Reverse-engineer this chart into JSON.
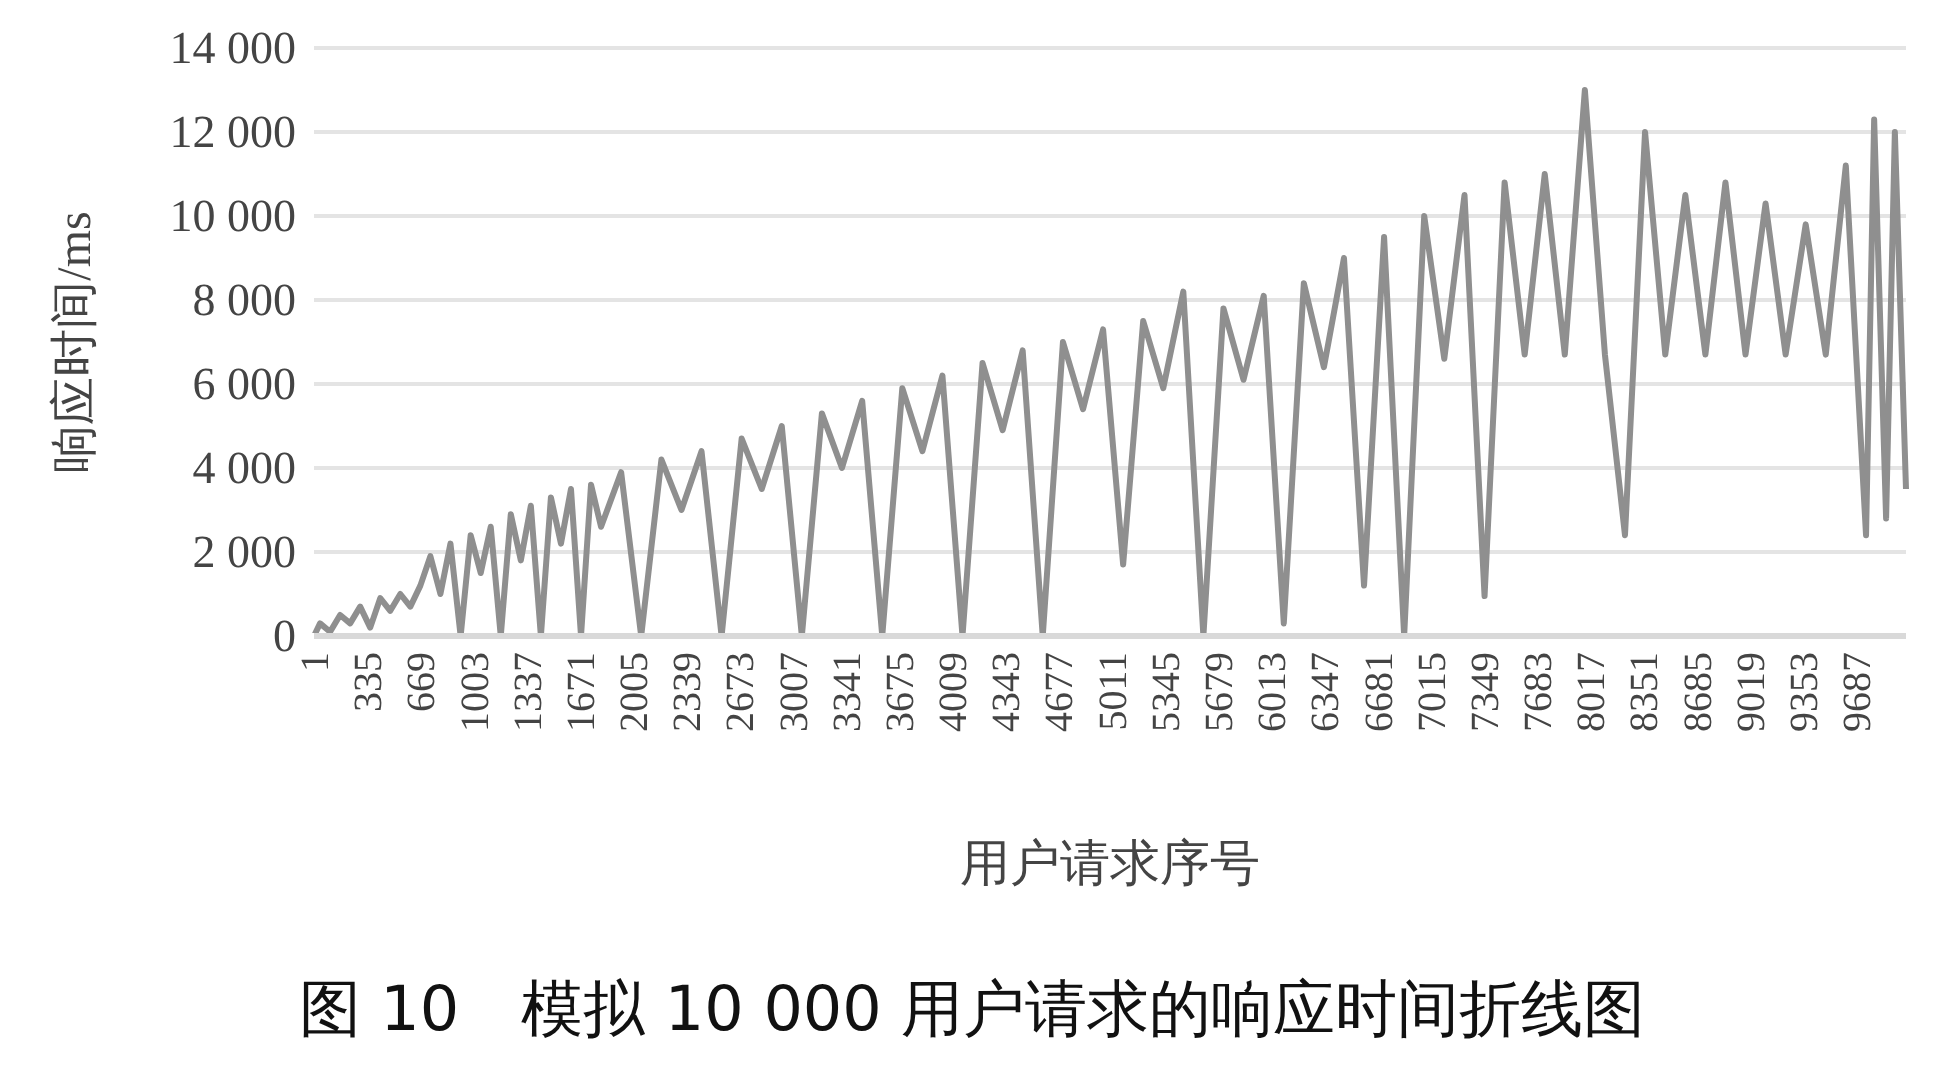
{
  "chart_data": {
    "type": "line",
    "title": "图 10　模拟 10 000 用户请求的响应时间折线图",
    "xlabel": "用户请求序号",
    "ylabel": "响应时间/ms",
    "xlim": [
      1,
      10000
    ],
    "xticks": [
      1,
      335,
      669,
      1003,
      1337,
      1671,
      2005,
      2339,
      2673,
      3007,
      3341,
      3675,
      4009,
      4343,
      4677,
      5011,
      5345,
      5679,
      6013,
      6347,
      6681,
      7015,
      7349,
      7683,
      8017,
      8351,
      8685,
      9019,
      9353,
      9687
    ],
    "ylim": [
      0,
      14000
    ],
    "yticks": [
      0,
      {
        "value": 2000,
        "label": "2 000"
      },
      {
        "value": 4000,
        "label": "4 000"
      },
      {
        "value": 6000,
        "label": "6 000"
      },
      {
        "value": 8000,
        "label": "8 000"
      },
      {
        "value": 10000,
        "label": "10 000"
      },
      {
        "value": 12000,
        "label": "12 000"
      },
      {
        "value": 14000,
        "label": "14 000"
      }
    ],
    "grid": "y",
    "legend": false,
    "marker": "none",
    "line_style": "solid",
    "series": [
      {
        "color": "#8f8f8f",
        "x": [
          1,
          39,
          102,
          165,
          228,
          291,
          354,
          417,
          480,
          543,
          606,
          669,
          732,
          795,
          858,
          922,
          985,
          1048,
          1111,
          1174,
          1237,
          1300,
          1363,
          1426,
          1489,
          1552,
          1615,
          1678,
          1741,
          1804,
          1930,
          2056,
          2183,
          2309,
          2435,
          2561,
          2687,
          2813,
          2939,
          3065,
          3191,
          3317,
          3444,
          3570,
          3696,
          3822,
          3948,
          4074,
          4200,
          4326,
          4452,
          4578,
          4705,
          4831,
          4957,
          5083,
          5209,
          5335,
          5461,
          5587,
          5713,
          5839,
          5966,
          6092,
          6218,
          6344,
          6470,
          6596,
          6722,
          6848,
          6974,
          7100,
          7227,
          7353,
          7479,
          7605,
          7731,
          7857,
          7983,
          8109,
          8235,
          8361,
          8488,
          8614,
          8740,
          8866,
          8992,
          9118,
          9244,
          9370,
          9496,
          9622,
          9749,
          9800,
          9875,
          9930,
          10000
        ],
        "values": [
          0,
          300,
          100,
          500,
          300,
          700,
          200,
          900,
          600,
          1000,
          700,
          1200,
          1900,
          1000,
          2200,
          0,
          2400,
          1500,
          2600,
          0,
          2900,
          1800,
          3100,
          0,
          3300,
          2200,
          3500,
          0,
          3600,
          2600,
          3900,
          0,
          4200,
          3000,
          4400,
          0,
          4700,
          3500,
          5000,
          0,
          5300,
          4000,
          5600,
          0,
          5900,
          4400,
          6200,
          0,
          6500,
          4900,
          6800,
          0,
          7000,
          5400,
          7300,
          1700,
          7500,
          5900,
          8200,
          0,
          7800,
          6100,
          8100,
          300,
          8400,
          6400,
          9000,
          1200,
          9500,
          0,
          10000,
          6600,
          10500,
          950,
          10800,
          6700,
          11000,
          6700,
          13000,
          6700,
          2400,
          12000,
          6700,
          10500,
          6700,
          10800,
          6700,
          10300,
          6700,
          9800,
          6700,
          11200,
          2400,
          12300,
          2800,
          12000,
          3500
        ]
      }
    ]
  }
}
